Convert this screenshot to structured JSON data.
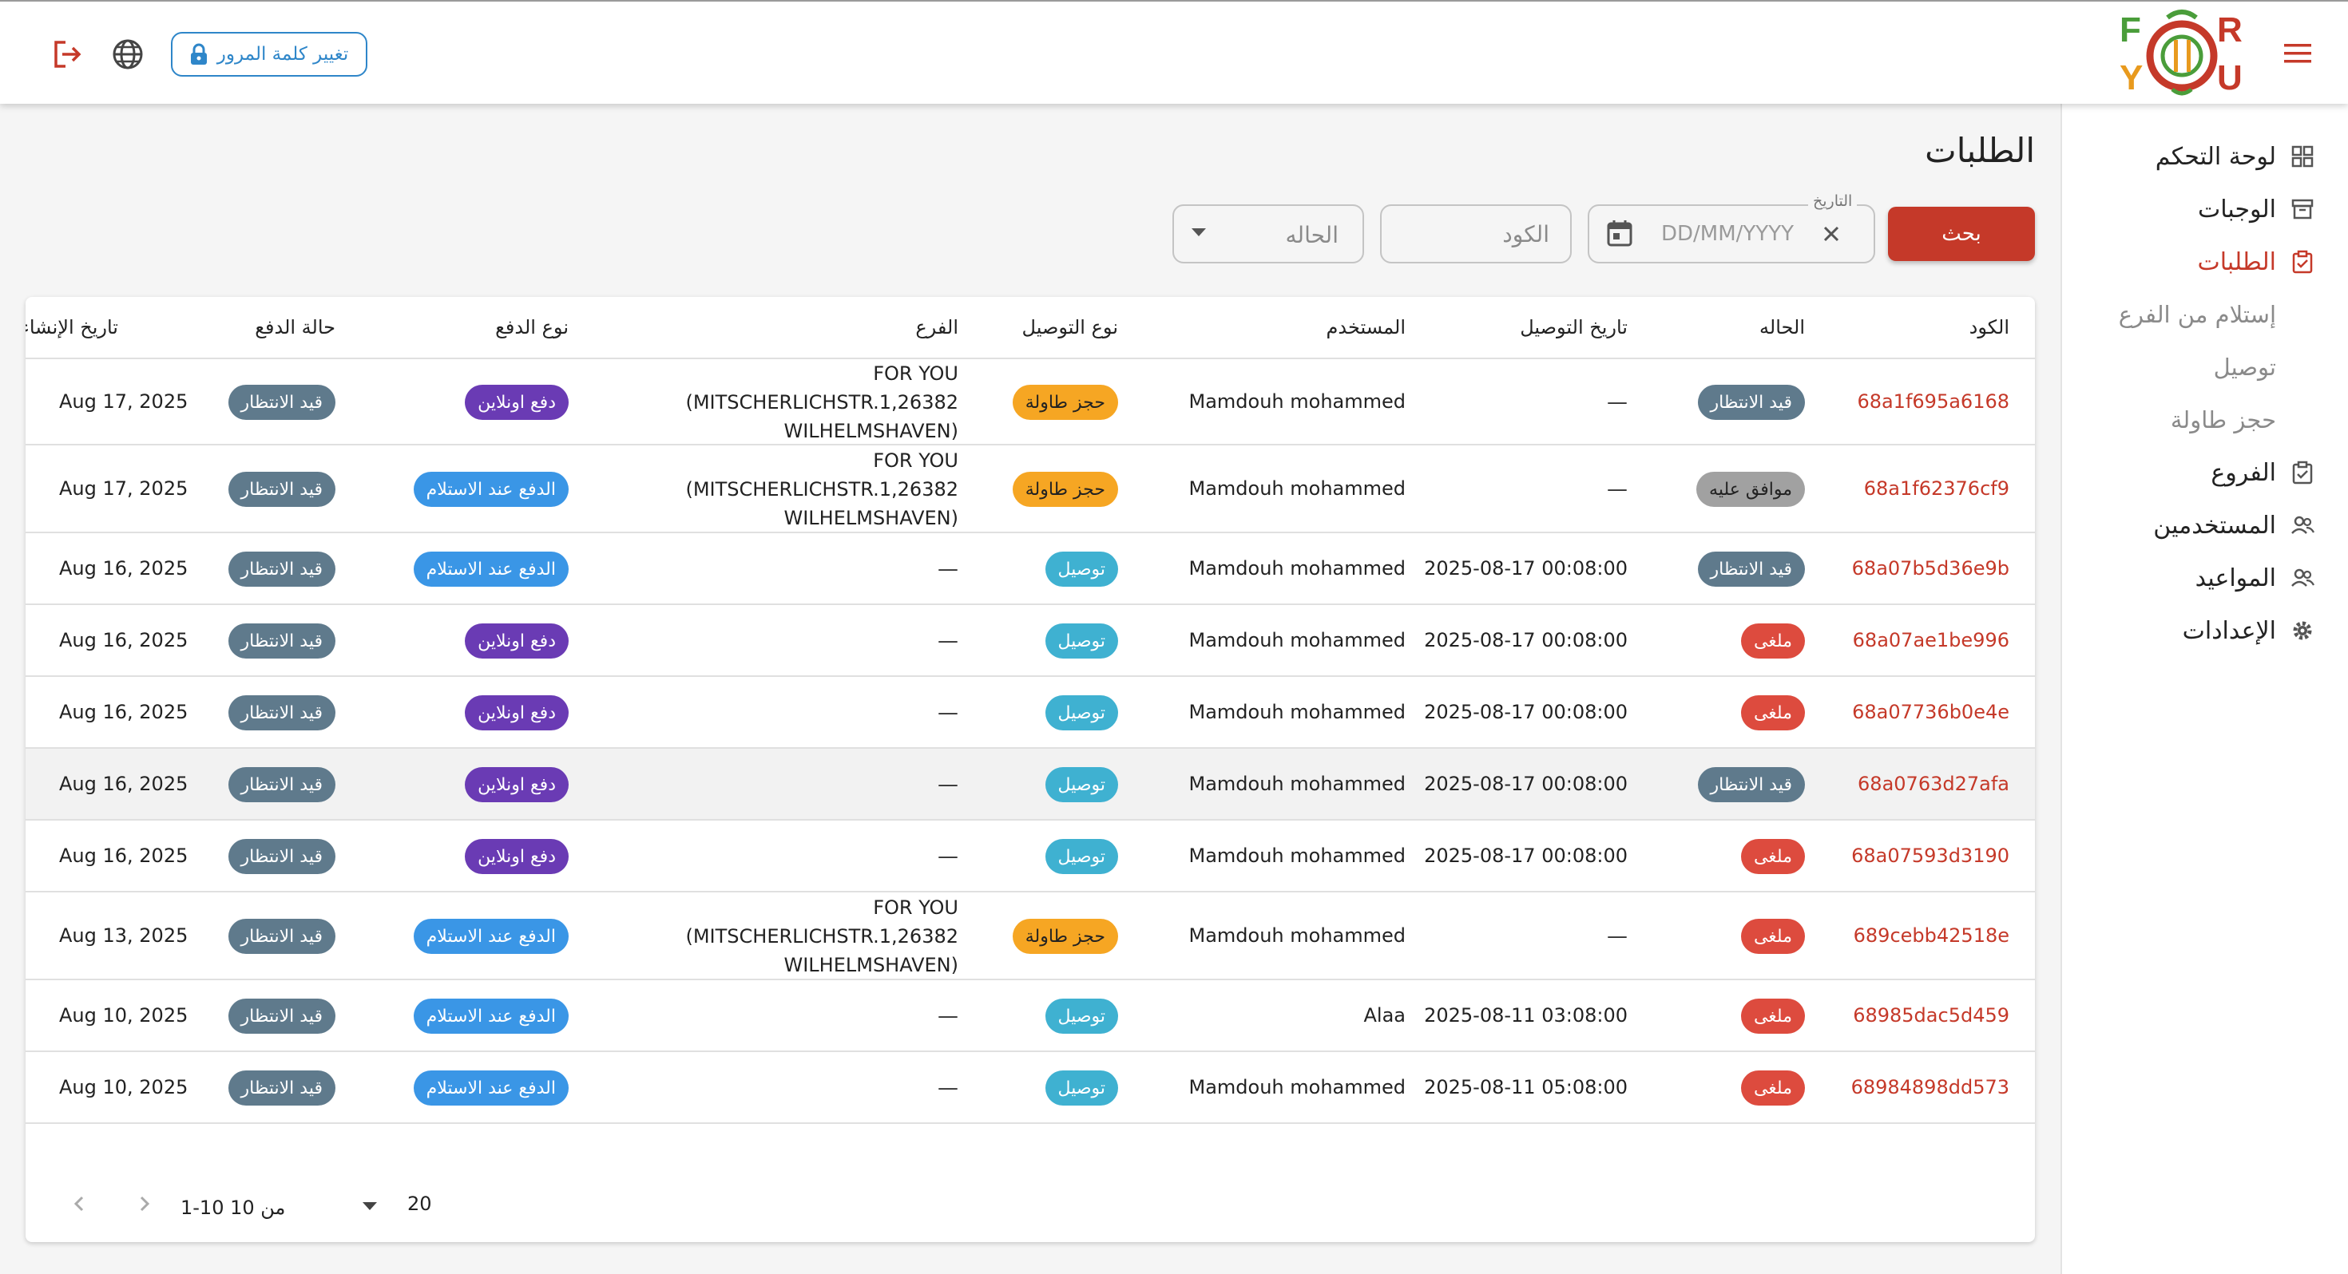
{
  "header": {
    "change_password": "تغيير كلمة المرور",
    "logo": {
      "letters": [
        "F",
        "R",
        "Y",
        "U"
      ],
      "colors": {
        "f": "#4a9d3a",
        "r": "#c53929",
        "y": "#e89a1e",
        "u": "#c53929"
      }
    }
  },
  "sidebar": {
    "items": [
      {
        "label": "لوحة التحكم",
        "icon": "dashboard-icon"
      },
      {
        "label": "الوجبات",
        "icon": "archive-icon"
      },
      {
        "label": "الطلبات",
        "icon": "clipboard-check-icon"
      },
      {
        "label": "إستلام من الفرع"
      },
      {
        "label": "توصيل"
      },
      {
        "label": "حجز طاولة"
      },
      {
        "label": "الفروع",
        "icon": "clipboard-check-icon"
      },
      {
        "label": "المستخدمين",
        "icon": "users-icon"
      },
      {
        "label": "المواعيد",
        "icon": "users-icon"
      },
      {
        "label": "الإعدادات",
        "icon": "gear-icon"
      }
    ]
  },
  "page": {
    "title": "الطلبات"
  },
  "filters": {
    "search_label": "بحث",
    "date_label": "التاريخ",
    "date_placeholder": "DD/MM/YYYY",
    "code_placeholder": "الكود",
    "status_placeholder": "الحاله"
  },
  "table": {
    "headers": [
      "الكود",
      "الحاله",
      "تاريخ التوصيل",
      "المستخدم",
      "نوع التوصيل",
      "الفرع",
      "نوع الدفع",
      "حالة الدفع",
      "تاريخ الإنشاء"
    ],
    "rows": [
      {
        "code": "68a1f695a6168",
        "status": "قيد الانتظار",
        "status_kind": "wait",
        "delivery_date": "—",
        "user": "Mamdouh mohammed",
        "delivery_type": "حجز طاولة",
        "dtype_kind": "table",
        "branch": [
          "FOR YOU",
          "(MITSCHERLICHSTR.1,26382",
          "WILHELMSHAVEN)"
        ],
        "payment_type": "دفع اونلاين",
        "ptype_kind": "online",
        "payment_status": "قيد الانتظار",
        "created": "Aug 17, 2025"
      },
      {
        "code": "68a1f62376cf9",
        "status": "موافق عليه",
        "status_kind": "ok",
        "delivery_date": "—",
        "user": "Mamdouh mohammed",
        "delivery_type": "حجز طاولة",
        "dtype_kind": "table",
        "branch": [
          "FOR YOU",
          "(MITSCHERLICHSTR.1,26382",
          "WILHELMSHAVEN)"
        ],
        "payment_type": "الدفع عند الاستلام",
        "ptype_kind": "cod",
        "payment_status": "قيد الانتظار",
        "created": "Aug 17, 2025"
      },
      {
        "code": "68a07b5d36e9b",
        "status": "قيد الانتظار",
        "status_kind": "wait",
        "delivery_date": "2025-08-17 00:08:00",
        "user": "Mamdouh mohammed",
        "delivery_type": "توصيل",
        "dtype_kind": "deliv",
        "branch": [
          "—"
        ],
        "payment_type": "الدفع عند الاستلام",
        "ptype_kind": "cod",
        "payment_status": "قيد الانتظار",
        "created": "Aug 16, 2025"
      },
      {
        "code": "68a07ae1be996",
        "status": "ملغى",
        "status_kind": "cancel",
        "delivery_date": "2025-08-17 00:08:00",
        "user": "Mamdouh mohammed",
        "delivery_type": "توصيل",
        "dtype_kind": "deliv",
        "branch": [
          "—"
        ],
        "payment_type": "دفع اونلاين",
        "ptype_kind": "online",
        "payment_status": "قيد الانتظار",
        "created": "Aug 16, 2025"
      },
      {
        "code": "68a07736b0e4e",
        "status": "ملغى",
        "status_kind": "cancel",
        "delivery_date": "2025-08-17 00:08:00",
        "user": "Mamdouh mohammed",
        "delivery_type": "توصيل",
        "dtype_kind": "deliv",
        "branch": [
          "—"
        ],
        "payment_type": "دفع اونلاين",
        "ptype_kind": "online",
        "payment_status": "قيد الانتظار",
        "created": "Aug 16, 2025"
      },
      {
        "code": "68a0763d27afa",
        "status": "قيد الانتظار",
        "status_kind": "wait",
        "delivery_date": "2025-08-17 00:08:00",
        "user": "Mamdouh mohammed",
        "delivery_type": "توصيل",
        "dtype_kind": "deliv",
        "branch": [
          "—"
        ],
        "payment_type": "دفع اونلاين",
        "ptype_kind": "online",
        "payment_status": "قيد الانتظار",
        "created": "Aug 16, 2025"
      },
      {
        "code": "68a07593d3190",
        "status": "ملغى",
        "status_kind": "cancel",
        "delivery_date": "2025-08-17 00:08:00",
        "user": "Mamdouh mohammed",
        "delivery_type": "توصيل",
        "dtype_kind": "deliv",
        "branch": [
          "—"
        ],
        "payment_type": "دفع اونلاين",
        "ptype_kind": "online",
        "payment_status": "قيد الانتظار",
        "created": "Aug 16, 2025"
      },
      {
        "code": "689cebb42518e",
        "status": "ملغى",
        "status_kind": "cancel",
        "delivery_date": "—",
        "user": "Mamdouh mohammed",
        "delivery_type": "حجز طاولة",
        "dtype_kind": "table",
        "branch": [
          "FOR YOU",
          "(MITSCHERLICHSTR.1,26382",
          "WILHELMSHAVEN)"
        ],
        "payment_type": "الدفع عند الاستلام",
        "ptype_kind": "cod",
        "payment_status": "قيد الانتظار",
        "created": "Aug 13, 2025"
      },
      {
        "code": "68985dac5d459",
        "status": "ملغى",
        "status_kind": "cancel",
        "delivery_date": "2025-08-11 03:08:00",
        "user": "Alaa",
        "delivery_type": "توصيل",
        "dtype_kind": "deliv",
        "branch": [
          "—"
        ],
        "payment_type": "الدفع عند الاستلام",
        "ptype_kind": "cod",
        "payment_status": "قيد الانتظار",
        "created": "Aug 10, 2025"
      },
      {
        "code": "68984898dd573",
        "status": "ملغى",
        "status_kind": "cancel",
        "delivery_date": "2025-08-11 05:08:00",
        "user": "Mamdouh mohammed",
        "delivery_type": "توصيل",
        "dtype_kind": "deliv",
        "branch": [
          "—"
        ],
        "payment_type": "الدفع عند الاستلام",
        "ptype_kind": "cod",
        "payment_status": "قيد الانتظار",
        "created": "Aug 10, 2025"
      }
    ]
  },
  "pagination": {
    "rows_per_page": "20",
    "range": "1-10 من 10"
  }
}
